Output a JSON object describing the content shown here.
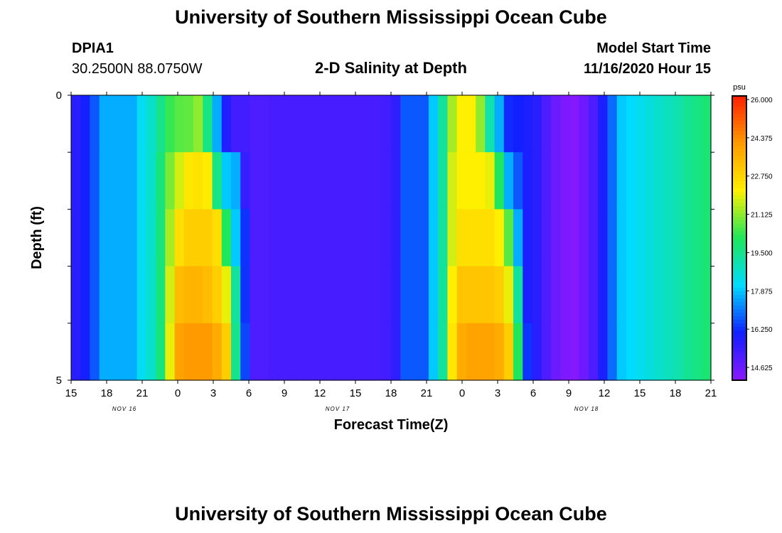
{
  "header": {
    "title": "University of Southern Mississippi Ocean Cube",
    "station_id": "DPIA1",
    "station_coords": "30.2500N 88.0750W",
    "model_start_label": "Model Start Time",
    "model_start_value": "11/16/2020 Hour 15"
  },
  "footer": {
    "title": "University of Southern Mississippi Ocean Cube"
  },
  "chart_data": {
    "type": "heatmap",
    "title": "2-D Salinity at Depth",
    "xlabel": "Forecast Time(Z)",
    "ylabel": "Depth (ft)",
    "x_tick_labels": [
      "15",
      "18",
      "21",
      "0",
      "3",
      "6",
      "9",
      "12",
      "15",
      "18",
      "21",
      "0",
      "3",
      "6",
      "9",
      "12",
      "15",
      "18",
      "21"
    ],
    "date_labels": [
      {
        "label": "NOV 16",
        "after_tick_index": 1
      },
      {
        "label": "NOV 17",
        "after_tick_index": 7
      },
      {
        "label": "NOV 18",
        "after_tick_index": 14
      }
    ],
    "y_tick_labels": [
      "0",
      "5"
    ],
    "ylim": [
      0,
      5
    ],
    "forecast_hours": 54,
    "depth_levels": [
      0,
      1,
      2,
      3,
      4,
      5
    ],
    "colorbar": {
      "unit": "psu",
      "min": 14.0,
      "max": 26.0,
      "tick_labels": [
        "26.000",
        "24.375",
        "22.750",
        "21.125",
        "19.500",
        "17.875",
        "16.250",
        "14.625"
      ],
      "tick_values": [
        26.0,
        24.375,
        22.75,
        21.125,
        19.5,
        17.875,
        16.25,
        14.625
      ]
    },
    "salinity_psu_by_depth": [
      [
        15.6,
        15.9,
        16.6,
        17.5,
        17.5,
        17.5,
        17.5,
        18.2,
        18.6,
        19.4,
        20.2,
        20.5,
        20.6,
        21.0,
        19.5,
        17.5,
        15.7,
        15.2,
        15.2,
        15.0,
        15.0,
        15.1,
        15.1,
        15.1,
        15.1,
        15.1,
        15.1,
        15.1,
        15.1,
        15.1,
        15.1,
        15.1,
        15.1,
        15.2,
        15.5,
        16.6,
        16.6,
        16.6,
        17.8,
        19.2,
        21.2,
        22.0,
        22.0,
        21.0,
        19.0,
        17.5,
        16.1,
        16.0,
        15.8,
        15.6,
        15.0,
        14.5,
        14.2,
        14.1,
        14.5,
        15.0,
        15.8,
        16.8,
        17.8,
        18.0,
        18.2,
        18.4,
        18.6,
        18.8,
        19.0,
        19.3,
        19.5,
        19.7
      ],
      [
        15.6,
        15.9,
        16.6,
        17.5,
        17.5,
        17.5,
        17.5,
        18.2,
        18.6,
        19.6,
        20.8,
        21.6,
        22.2,
        22.3,
        22.1,
        19.5,
        17.8,
        17.5,
        15.4,
        15.0,
        15.0,
        15.1,
        15.1,
        15.1,
        15.1,
        15.1,
        15.1,
        15.1,
        15.1,
        15.1,
        15.1,
        15.1,
        15.1,
        15.2,
        15.5,
        16.6,
        16.6,
        16.6,
        17.8,
        19.2,
        21.6,
        22.0,
        22.0,
        22.0,
        21.8,
        20.0,
        17.5,
        16.6,
        15.8,
        15.6,
        15.0,
        14.5,
        14.2,
        14.1,
        14.5,
        15.0,
        15.8,
        16.8,
        17.8,
        18.0,
        18.2,
        18.4,
        18.6,
        18.8,
        19.0,
        19.3,
        19.5,
        19.7
      ],
      [
        15.6,
        15.9,
        16.6,
        17.5,
        17.5,
        17.5,
        17.5,
        18.2,
        18.6,
        19.6,
        21.2,
        22.4,
        22.8,
        22.8,
        22.8,
        22.4,
        20.0,
        17.8,
        16.2,
        15.0,
        15.0,
        15.1,
        15.1,
        15.1,
        15.1,
        15.1,
        15.1,
        15.1,
        15.1,
        15.1,
        15.1,
        15.1,
        15.1,
        15.2,
        15.5,
        16.6,
        16.6,
        16.6,
        17.8,
        19.2,
        21.6,
        22.4,
        22.4,
        22.4,
        22.4,
        22.0,
        20.5,
        17.5,
        15.8,
        15.6,
        15.0,
        14.5,
        14.2,
        14.1,
        14.5,
        15.0,
        15.8,
        16.8,
        17.8,
        18.0,
        18.2,
        18.4,
        18.6,
        18.8,
        19.0,
        19.3,
        19.5,
        19.7
      ],
      [
        15.6,
        15.9,
        16.6,
        17.5,
        17.5,
        17.5,
        17.5,
        18.2,
        18.6,
        19.6,
        21.6,
        23.2,
        23.4,
        23.4,
        23.2,
        22.8,
        21.8,
        19.2,
        16.2,
        15.0,
        15.0,
        15.1,
        15.1,
        15.1,
        15.1,
        15.1,
        15.1,
        15.1,
        15.1,
        15.1,
        15.1,
        15.1,
        15.1,
        15.2,
        15.5,
        16.6,
        16.6,
        16.6,
        17.8,
        19.2,
        22.0,
        23.0,
        23.0,
        23.0,
        23.0,
        22.8,
        21.8,
        19.2,
        15.8,
        15.6,
        15.0,
        14.5,
        14.2,
        14.1,
        14.5,
        15.0,
        15.8,
        16.8,
        17.8,
        18.0,
        18.2,
        18.4,
        18.6,
        18.8,
        19.0,
        19.3,
        19.5,
        19.7
      ],
      [
        15.6,
        15.9,
        16.6,
        17.5,
        17.5,
        17.5,
        17.5,
        18.2,
        18.6,
        19.6,
        21.8,
        23.8,
        24.0,
        24.0,
        24.0,
        23.6,
        22.8,
        19.4,
        16.4,
        15.0,
        15.0,
        15.1,
        15.1,
        15.1,
        15.1,
        15.1,
        15.1,
        15.1,
        15.1,
        15.1,
        15.1,
        15.1,
        15.1,
        15.2,
        15.5,
        16.6,
        16.6,
        16.6,
        17.8,
        19.2,
        22.2,
        23.6,
        23.8,
        23.8,
        23.8,
        23.6,
        22.8,
        20.0,
        16.2,
        15.6,
        15.0,
        14.5,
        14.2,
        14.1,
        14.5,
        15.0,
        15.8,
        16.8,
        17.8,
        18.0,
        18.2,
        18.4,
        18.6,
        18.8,
        19.0,
        19.3,
        19.5,
        19.7
      ]
    ]
  },
  "colors": {
    "background": "#ffffff",
    "text": "#000000",
    "colormap": [
      "#8a18ff",
      "#1020ff",
      "#00dcff",
      "#1fe65a",
      "#fff000",
      "#ff9a00",
      "#ff1e00"
    ]
  }
}
